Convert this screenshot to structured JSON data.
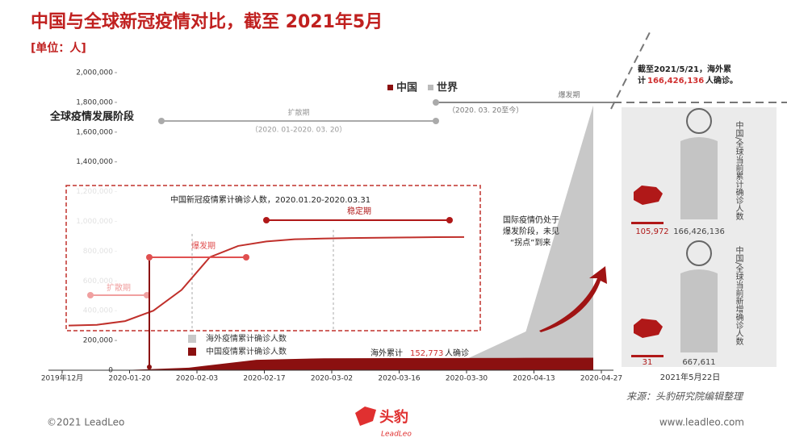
{
  "title": "中国与全球新冠疫情对比，截至 2021年5月",
  "unit": "[单位：人]",
  "chart_data": [
    {
      "type": "area",
      "categories": [
        "2019年12月",
        "2020-01-20",
        "2020-02-03",
        "2020-02-17",
        "2020-03-02",
        "2020-03-16",
        "2020-03-30",
        "2020-04-13",
        "2020-04-27"
      ],
      "series": [
        {
          "name": "海外疫情累计确诊人数",
          "color": "#c8c8c8",
          "values": [
            0,
            0,
            0,
            0,
            2000,
            8000,
            50000,
            260000,
            1780000
          ]
        },
        {
          "name": "中国疫情累计确诊人数",
          "color": "#8b1010",
          "values": [
            0,
            300,
            17000,
            70000,
            80000,
            81000,
            82000,
            83000,
            84000
          ]
        }
      ],
      "ylim": [
        0,
        2000000
      ],
      "yticks": [
        0,
        {
          "value": 200000,
          "label": "200,000"
        },
        {
          "value": 400000,
          "label": "400,000"
        },
        {
          "value": 600000,
          "label": "600,000"
        },
        {
          "value": 800000,
          "label": "800,000"
        },
        {
          "value": 1000000,
          "label": "1,000,000"
        },
        {
          "value": 1200000,
          "label": "1,200,000"
        },
        {
          "value": 1400000,
          "label": "1,400,000"
        },
        {
          "value": 1600000,
          "label": "1,600,000"
        },
        {
          "value": 1800000,
          "label": "1,800,000"
        },
        {
          "value": 2000000,
          "label": "2,000,000"
        }
      ],
      "grid": false
    },
    {
      "type": "line",
      "title": "中国新冠疫情累计确诊人数，2020.01.20-2020.03.31",
      "color": "#c0302b",
      "values": [
        300000,
        305000,
        330000,
        400000,
        540000,
        760000,
        835000,
        865000,
        880000,
        885000,
        888000,
        890000,
        892000,
        894000,
        895000
      ],
      "ylim": [
        0,
        2000000
      ],
      "phases": [
        "扩散期",
        "爆发期",
        "稳定期"
      ]
    }
  ],
  "legend_top": [
    "中国",
    "世界"
  ],
  "stages": {
    "label": "全球疫情发展阶段",
    "spread": "扩散期",
    "spread_dates": "（2020. 01-2020. 03. 20）",
    "outbreak": "爆发期",
    "outbreak_dates": "（2020. 03. 20至今）"
  },
  "annotations": {
    "intl": [
      "国际疫情仍处于",
      "爆发阶段，未见",
      "“拐点”到来"
    ],
    "overseas": [
      "海外累计",
      "152,773",
      "人确诊"
    ]
  },
  "right_panel": {
    "note": [
      "截至2021/5/21，海外累",
      "计",
      "166,426,136",
      "人确诊。"
    ],
    "cumulative_label": "中国/全球当前累计确诊人数",
    "new_label": "中国/全球当前新增确诊人数",
    "china_cumulative": "105,972",
    "global_cumulative": "166,426,136",
    "china_new": "31",
    "global_new": "667,611",
    "date": "2021年5月22日"
  },
  "footer": {
    "source": "来源：头豹研究院编辑整理",
    "copyright": "©2021 LeadLeo",
    "url": "www.leadleo.com",
    "logo": "头豹",
    "logo_sub": "LeadLeo"
  }
}
